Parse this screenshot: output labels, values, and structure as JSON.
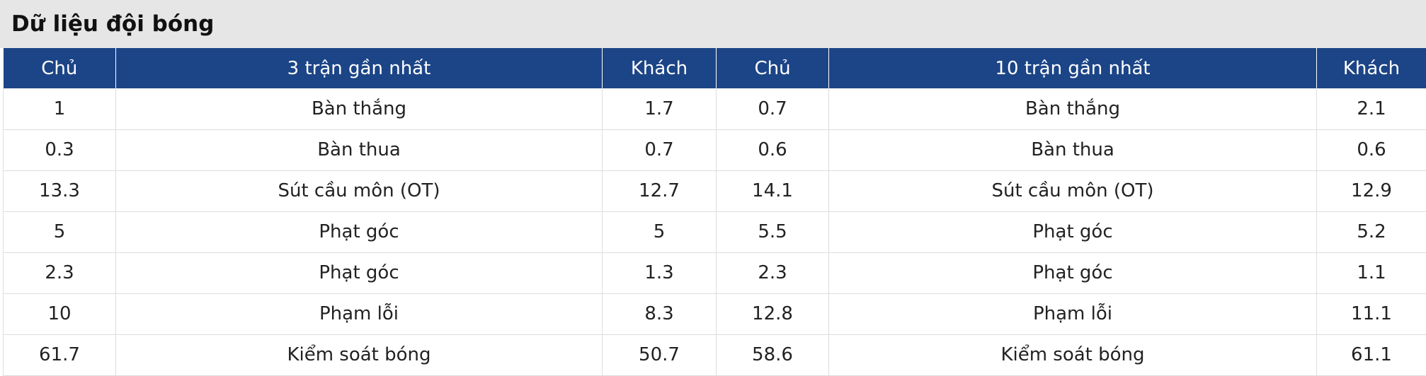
{
  "title": "Dữ liệu đội bóng",
  "table": {
    "header": [
      "Chủ",
      "3 trận gần nhất",
      "Khách",
      "Chủ",
      "10 trận gần nhất",
      "Khách"
    ],
    "rows": [
      [
        1,
        "Bàn thắng",
        1.7,
        0.7,
        "Bàn thắng",
        2.1
      ],
      [
        0.3,
        "Bàn thua",
        0.7,
        0.6,
        "Bàn thua",
        0.6
      ],
      [
        13.3,
        "Sút cầu môn (OT)",
        12.7,
        14.1,
        "Sút cầu môn (OT)",
        12.9
      ],
      [
        5,
        "Phạt góc",
        5,
        5.5,
        "Phạt góc",
        5.2
      ],
      [
        2.3,
        "Phạt góc",
        1.3,
        2.3,
        "Phạt góc",
        1.1
      ],
      [
        10,
        "Phạm lỗi",
        8.3,
        12.8,
        "Phạm lỗi",
        11.1
      ],
      [
        61.7,
        "Kiểm soát bóng",
        50.7,
        58.6,
        "Kiểm soát bóng",
        61.1
      ]
    ]
  }
}
